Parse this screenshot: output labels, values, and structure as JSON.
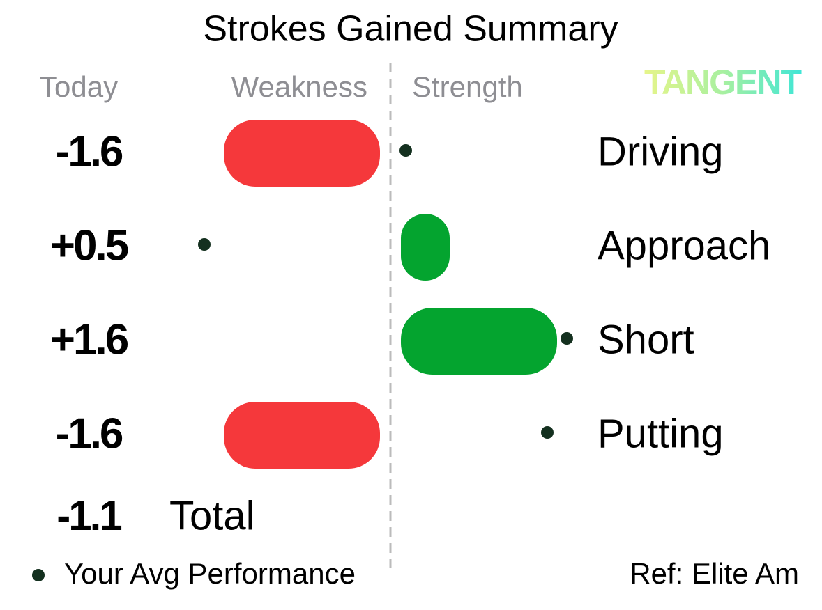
{
  "title": "Strokes Gained Summary",
  "logo": "TANGENT",
  "chart_data": {
    "type": "bar",
    "orientation": "horizontal",
    "column_labels": [
      "Weakness",
      "Strength"
    ],
    "categories": [
      "Driving",
      "Approach",
      "Short",
      "Putting"
    ],
    "series": [
      {
        "name": "Today",
        "values": [
          -1.6,
          0.5,
          1.6,
          -1.6
        ],
        "value_labels": [
          "-1.6",
          "+0.5",
          "+1.6",
          "-1.6"
        ],
        "colors": {
          "negative": "#f5383b",
          "positive": "#04a42f"
        }
      },
      {
        "name": "Your Avg Performance",
        "values": [
          0.05,
          -1.8,
          1.7,
          1.5
        ],
        "color": "#14301f"
      }
    ],
    "total": {
      "label": "Total",
      "value": -1.1,
      "value_label": "-1.1"
    },
    "reference": "Ref: Elite Am",
    "xlim": [
      -2,
      2
    ]
  }
}
